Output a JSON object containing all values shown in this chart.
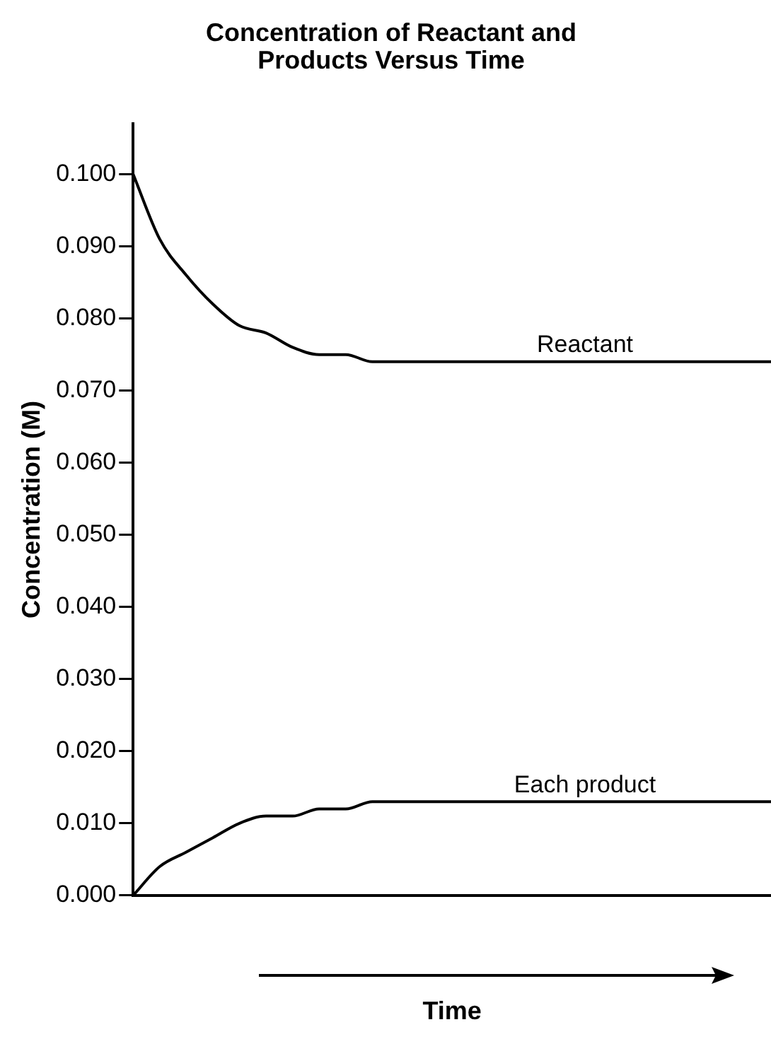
{
  "chart_data": {
    "type": "line",
    "title": "Concentration of Reactant and Products Versus Time",
    "xlabel": "Time",
    "ylabel": "Concentration (M)",
    "categories": [
      null,
      null,
      null,
      null,
      null,
      null,
      null,
      null,
      null,
      null,
      null,
      null,
      null,
      null,
      null,
      null,
      null,
      null,
      null,
      null,
      null,
      null,
      null,
      null,
      null
    ],
    "series": [
      {
        "name": "Reactant",
        "color": "#000000",
        "values": [
          0.1,
          0.091,
          0.086,
          0.082,
          0.079,
          0.078,
          0.076,
          0.075,
          0.075,
          0.074,
          0.074,
          0.074,
          0.074,
          0.074,
          0.074,
          0.074,
          0.074,
          0.074,
          0.074,
          0.074,
          0.074,
          0.074,
          0.074,
          0.074,
          0.074
        ]
      },
      {
        "name": "Each product",
        "color": "#000000",
        "values": [
          0,
          0.004,
          0.006,
          0.008,
          0.01,
          0.011,
          0.011,
          0.012,
          0.012,
          0.013,
          0.013,
          0.013,
          0.013,
          0.013,
          0.013,
          0.013,
          0.013,
          0.013,
          0.013,
          0.013,
          0.013,
          0.013,
          0.013,
          0.013,
          0.013
        ]
      }
    ],
    "ylim": [
      0,
      0.107
    ],
    "yticks": [
      {
        "value": 0,
        "label": "0.000"
      },
      {
        "value": 0.01,
        "label": "0.010"
      },
      {
        "value": 0.02,
        "label": "0.020"
      },
      {
        "value": 0.03,
        "label": "0.030"
      },
      {
        "value": 0.04,
        "label": "0.040"
      },
      {
        "value": 0.05,
        "label": "0.050"
      },
      {
        "value": 0.06,
        "label": "0.060"
      },
      {
        "value": 0.07,
        "label": "0.070"
      },
      {
        "value": 0.08,
        "label": "0.080"
      },
      {
        "value": 0.09,
        "label": "0.090"
      },
      {
        "value": 0.1,
        "label": "0.100"
      }
    ],
    "tick_labels": "y",
    "grid": false,
    "legend": false,
    "marker": "none",
    "line_style": "solid"
  }
}
